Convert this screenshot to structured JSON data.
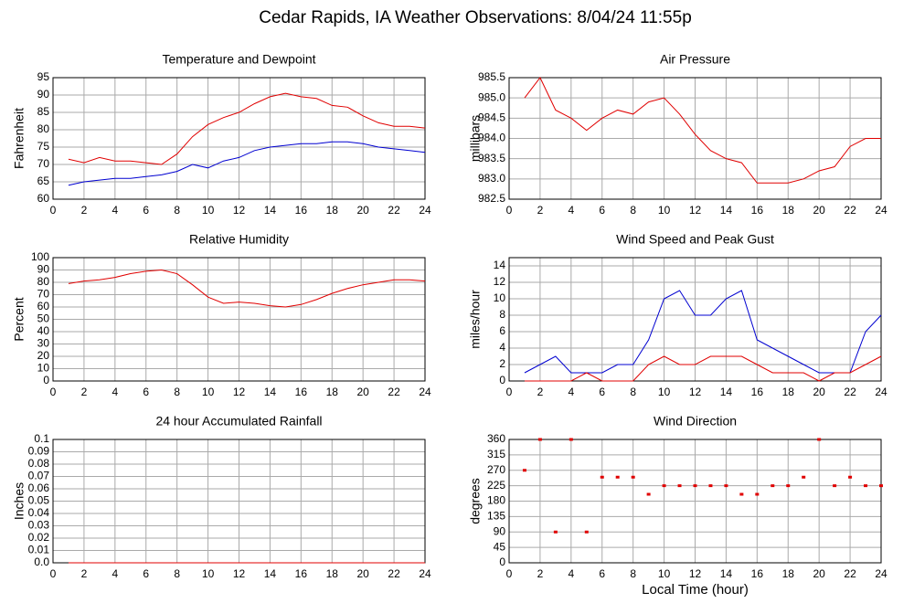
{
  "title": "Cedar Rapids, IA Weather Observations: 8/04/24 11:55p",
  "chart_data": [
    {
      "type": "line",
      "title": "Temperature and Dewpoint",
      "ylabel": "Fahrenheit",
      "grid": true,
      "x": [
        1,
        2,
        3,
        4,
        5,
        6,
        7,
        8,
        9,
        10,
        11,
        12,
        13,
        14,
        15,
        16,
        17,
        18,
        19,
        20,
        21,
        22,
        23,
        24
      ],
      "xlim": [
        0,
        24
      ],
      "xticks": [
        0,
        2,
        4,
        6,
        8,
        10,
        12,
        14,
        16,
        18,
        20,
        22,
        24
      ],
      "ylim": [
        60,
        95
      ],
      "yticks": [
        60,
        65,
        70,
        75,
        80,
        85,
        90,
        95
      ],
      "series": [
        {
          "color": "#e00000",
          "values": [
            71.5,
            70.5,
            72,
            71,
            71,
            70.5,
            70,
            73,
            78,
            81.5,
            83.5,
            85,
            87.5,
            89.5,
            90.5,
            89.5,
            89,
            87,
            86.5,
            84,
            82,
            81,
            81,
            80.5
          ]
        },
        {
          "color": "#0000d0",
          "values": [
            64,
            65,
            65.5,
            66,
            66,
            66.5,
            67,
            68,
            70,
            69,
            71,
            72,
            74,
            75,
            75.5,
            76,
            76,
            76.5,
            76.5,
            76,
            75,
            74.5,
            74,
            73.5
          ]
        }
      ]
    },
    {
      "type": "line",
      "title": "Air Pressure",
      "ylabel": "millibars",
      "grid": true,
      "x": [
        1,
        2,
        3,
        4,
        5,
        6,
        7,
        8,
        9,
        10,
        11,
        12,
        13,
        14,
        15,
        16,
        17,
        18,
        19,
        20,
        21,
        22,
        23,
        24
      ],
      "xlim": [
        0,
        24
      ],
      "xticks": [
        0,
        2,
        4,
        6,
        8,
        10,
        12,
        14,
        16,
        18,
        20,
        22,
        24
      ],
      "ylim": [
        982.5,
        985.5
      ],
      "yticks": [
        982.5,
        {
          "value": 983,
          "label": "983.0"
        },
        983.5,
        {
          "value": 984,
          "label": "984.0"
        },
        984.5,
        {
          "value": 985,
          "label": "985.0"
        },
        985.5
      ],
      "series": [
        {
          "color": "#e00000",
          "values": [
            985,
            985.5,
            984.7,
            984.5,
            984.2,
            984.5,
            984.7,
            984.6,
            984.9,
            985,
            984.6,
            984.1,
            983.7,
            983.5,
            983.4,
            982.9,
            982.9,
            982.9,
            983,
            983.2,
            983.3,
            983.8,
            984,
            984
          ]
        }
      ]
    },
    {
      "type": "line",
      "title": "Relative Humidity",
      "ylabel": "Percent",
      "grid": true,
      "x": [
        1,
        2,
        3,
        4,
        5,
        6,
        7,
        8,
        9,
        10,
        11,
        12,
        13,
        14,
        15,
        16,
        17,
        18,
        19,
        20,
        21,
        22,
        23,
        24
      ],
      "xlim": [
        0,
        24
      ],
      "xticks": [
        0,
        2,
        4,
        6,
        8,
        10,
        12,
        14,
        16,
        18,
        20,
        22,
        24
      ],
      "ylim": [
        0,
        100
      ],
      "yticks": [
        0,
        10,
        20,
        30,
        40,
        50,
        60,
        70,
        80,
        90,
        100
      ],
      "series": [
        {
          "color": "#e00000",
          "values": [
            79,
            81,
            82,
            84,
            87,
            89,
            90,
            87,
            78,
            68,
            63,
            64,
            63,
            61,
            60,
            62,
            66,
            71,
            75,
            78,
            80,
            82,
            82,
            81
          ]
        }
      ]
    },
    {
      "type": "line",
      "title": "Wind Speed and Peak Gust",
      "ylabel": "miles/hour",
      "grid": true,
      "x": [
        1,
        2,
        3,
        4,
        5,
        6,
        7,
        8,
        9,
        10,
        11,
        12,
        13,
        14,
        15,
        16,
        17,
        18,
        19,
        20,
        21,
        22,
        23,
        24
      ],
      "xlim": [
        0,
        24
      ],
      "xticks": [
        0,
        2,
        4,
        6,
        8,
        10,
        12,
        14,
        16,
        18,
        20,
        22,
        24
      ],
      "ylim": [
        0,
        15
      ],
      "yticks": [
        0,
        2,
        4,
        6,
        8,
        10,
        12,
        14
      ],
      "series": [
        {
          "color": "#0000d0",
          "values": [
            1,
            2,
            3,
            1,
            1,
            1,
            2,
            2,
            5,
            10,
            11,
            8,
            8,
            10,
            11,
            5,
            4,
            3,
            2,
            1,
            1,
            1,
            6,
            8
          ]
        },
        {
          "color": "#e00000",
          "values": [
            0,
            0,
            0,
            0,
            1,
            0,
            0,
            0,
            2,
            3,
            2,
            2,
            3,
            3,
            3,
            2,
            1,
            1,
            1,
            0,
            1,
            1,
            2,
            3
          ]
        }
      ]
    },
    {
      "type": "line",
      "title": "24 hour Accumulated Rainfall",
      "ylabel": "Inches",
      "grid": true,
      "x": [
        1,
        2,
        3,
        4,
        5,
        6,
        7,
        8,
        9,
        10,
        11,
        12,
        13,
        14,
        15,
        16,
        17,
        18,
        19,
        20,
        21,
        22,
        23,
        24
      ],
      "xlim": [
        0,
        24
      ],
      "xticks": [
        0,
        2,
        4,
        6,
        8,
        10,
        12,
        14,
        16,
        18,
        20,
        22,
        24
      ],
      "ylim": [
        0,
        0.1
      ],
      "yticks": [
        {
          "value": 0,
          "label": "0.0"
        },
        0.01,
        0.02,
        0.03,
        0.04,
        0.05,
        0.06,
        0.07,
        0.08,
        0.09,
        0.1
      ],
      "series": [
        {
          "color": "#e00000",
          "values": [
            0,
            0,
            0,
            0,
            0,
            0,
            0,
            0,
            0,
            0,
            0,
            0,
            0,
            0,
            0,
            0,
            0,
            0,
            0,
            0,
            0,
            0,
            0,
            0
          ]
        }
      ]
    },
    {
      "type": "scatter",
      "title": "Wind Direction",
      "ylabel": "degrees",
      "xlabel": "Local Time (hour)",
      "grid": true,
      "x": [
        1,
        2,
        3,
        4,
        5,
        6,
        7,
        8,
        9,
        10,
        11,
        12,
        13,
        14,
        15,
        16,
        17,
        18,
        19,
        20,
        21,
        22,
        23,
        24
      ],
      "xlim": [
        0,
        24
      ],
      "xticks": [
        0,
        2,
        4,
        6,
        8,
        10,
        12,
        14,
        16,
        18,
        20,
        22,
        24
      ],
      "ylim": [
        0,
        360
      ],
      "yticks": [
        0,
        45,
        90,
        135,
        180,
        225,
        270,
        315,
        360
      ],
      "series": [
        {
          "color": "#e00000",
          "values": [
            270,
            360,
            90,
            360,
            90,
            250,
            250,
            250,
            200,
            225,
            225,
            225,
            225,
            225,
            200,
            200,
            225,
            225,
            250,
            360,
            225,
            250,
            225,
            225
          ]
        }
      ]
    }
  ]
}
